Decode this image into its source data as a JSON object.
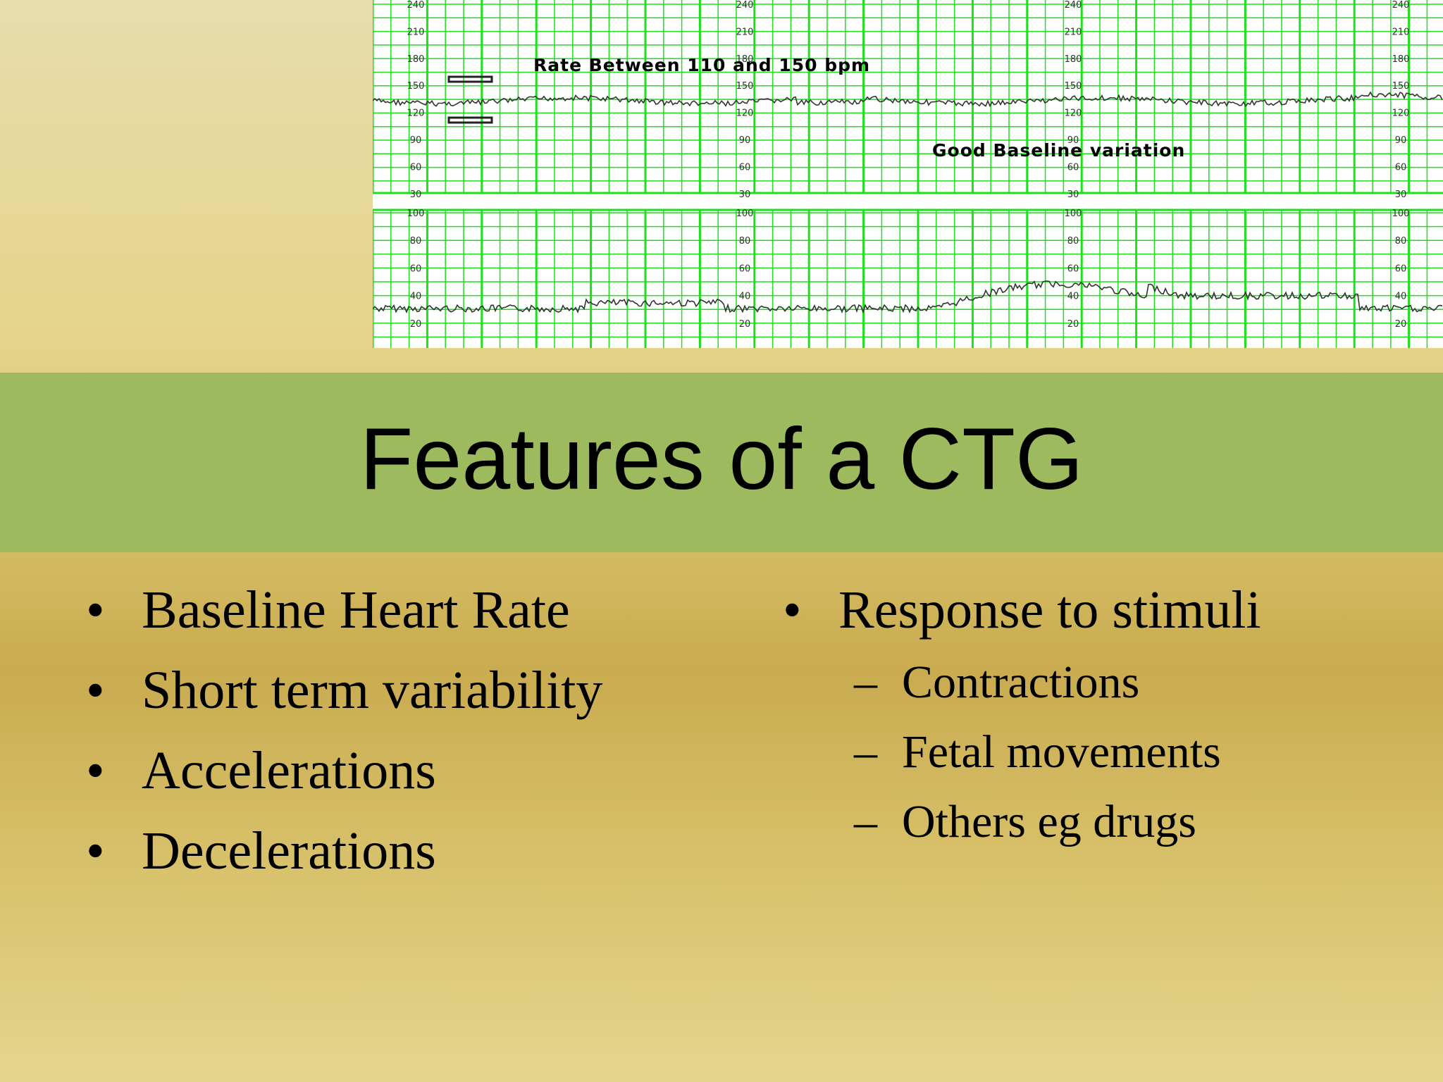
{
  "ctg_image": {
    "annotations": [
      "Rate Between 110 and 150 bpm",
      "Good Baseline variation"
    ],
    "upper_scale_labels": [
      "240",
      "210",
      "180",
      "150",
      "120",
      "90",
      "60",
      "30"
    ],
    "lower_scale_labels": [
      "100",
      "80",
      "60",
      "40",
      "20"
    ]
  },
  "title": "Features of a CTG",
  "left_bullets": [
    "Baseline Heart Rate",
    "Short term variability",
    "Accelerations",
    "Decelerations"
  ],
  "right_bullet": "Response to stimuli",
  "right_subbullets": [
    "Contractions",
    "Fetal movements",
    "Others eg drugs"
  ]
}
